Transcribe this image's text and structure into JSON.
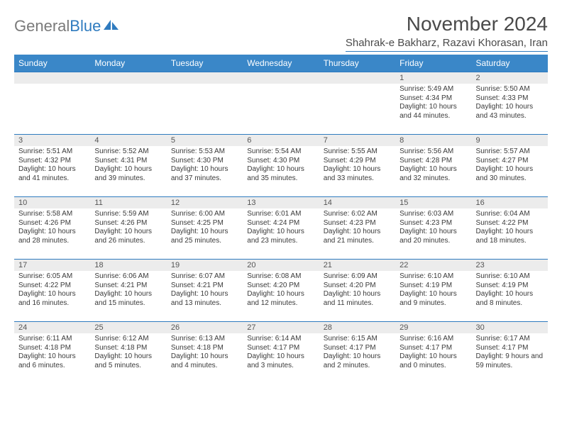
{
  "logo": {
    "text1": "General",
    "text2": "Blue"
  },
  "title": "November 2024",
  "location": "Shahrak-e Bakharz, Razavi Khorasan, Iran",
  "colors": {
    "header_bg": "#3a87c8",
    "accent": "#2f7bbf",
    "daynum_bg": "#ececec",
    "text": "#3a3a3a",
    "title_text": "#4a4a4a",
    "logo_gray": "#7a7a7a"
  },
  "day_headers": [
    "Sunday",
    "Monday",
    "Tuesday",
    "Wednesday",
    "Thursday",
    "Friday",
    "Saturday"
  ],
  "weeks": [
    [
      {
        "n": "",
        "sr": "",
        "ss": "",
        "dl": ""
      },
      {
        "n": "",
        "sr": "",
        "ss": "",
        "dl": ""
      },
      {
        "n": "",
        "sr": "",
        "ss": "",
        "dl": ""
      },
      {
        "n": "",
        "sr": "",
        "ss": "",
        "dl": ""
      },
      {
        "n": "",
        "sr": "",
        "ss": "",
        "dl": ""
      },
      {
        "n": "1",
        "sr": "Sunrise: 5:49 AM",
        "ss": "Sunset: 4:34 PM",
        "dl": "Daylight: 10 hours and 44 minutes."
      },
      {
        "n": "2",
        "sr": "Sunrise: 5:50 AM",
        "ss": "Sunset: 4:33 PM",
        "dl": "Daylight: 10 hours and 43 minutes."
      }
    ],
    [
      {
        "n": "3",
        "sr": "Sunrise: 5:51 AM",
        "ss": "Sunset: 4:32 PM",
        "dl": "Daylight: 10 hours and 41 minutes."
      },
      {
        "n": "4",
        "sr": "Sunrise: 5:52 AM",
        "ss": "Sunset: 4:31 PM",
        "dl": "Daylight: 10 hours and 39 minutes."
      },
      {
        "n": "5",
        "sr": "Sunrise: 5:53 AM",
        "ss": "Sunset: 4:30 PM",
        "dl": "Daylight: 10 hours and 37 minutes."
      },
      {
        "n": "6",
        "sr": "Sunrise: 5:54 AM",
        "ss": "Sunset: 4:30 PM",
        "dl": "Daylight: 10 hours and 35 minutes."
      },
      {
        "n": "7",
        "sr": "Sunrise: 5:55 AM",
        "ss": "Sunset: 4:29 PM",
        "dl": "Daylight: 10 hours and 33 minutes."
      },
      {
        "n": "8",
        "sr": "Sunrise: 5:56 AM",
        "ss": "Sunset: 4:28 PM",
        "dl": "Daylight: 10 hours and 32 minutes."
      },
      {
        "n": "9",
        "sr": "Sunrise: 5:57 AM",
        "ss": "Sunset: 4:27 PM",
        "dl": "Daylight: 10 hours and 30 minutes."
      }
    ],
    [
      {
        "n": "10",
        "sr": "Sunrise: 5:58 AM",
        "ss": "Sunset: 4:26 PM",
        "dl": "Daylight: 10 hours and 28 minutes."
      },
      {
        "n": "11",
        "sr": "Sunrise: 5:59 AM",
        "ss": "Sunset: 4:26 PM",
        "dl": "Daylight: 10 hours and 26 minutes."
      },
      {
        "n": "12",
        "sr": "Sunrise: 6:00 AM",
        "ss": "Sunset: 4:25 PM",
        "dl": "Daylight: 10 hours and 25 minutes."
      },
      {
        "n": "13",
        "sr": "Sunrise: 6:01 AM",
        "ss": "Sunset: 4:24 PM",
        "dl": "Daylight: 10 hours and 23 minutes."
      },
      {
        "n": "14",
        "sr": "Sunrise: 6:02 AM",
        "ss": "Sunset: 4:23 PM",
        "dl": "Daylight: 10 hours and 21 minutes."
      },
      {
        "n": "15",
        "sr": "Sunrise: 6:03 AM",
        "ss": "Sunset: 4:23 PM",
        "dl": "Daylight: 10 hours and 20 minutes."
      },
      {
        "n": "16",
        "sr": "Sunrise: 6:04 AM",
        "ss": "Sunset: 4:22 PM",
        "dl": "Daylight: 10 hours and 18 minutes."
      }
    ],
    [
      {
        "n": "17",
        "sr": "Sunrise: 6:05 AM",
        "ss": "Sunset: 4:22 PM",
        "dl": "Daylight: 10 hours and 16 minutes."
      },
      {
        "n": "18",
        "sr": "Sunrise: 6:06 AM",
        "ss": "Sunset: 4:21 PM",
        "dl": "Daylight: 10 hours and 15 minutes."
      },
      {
        "n": "19",
        "sr": "Sunrise: 6:07 AM",
        "ss": "Sunset: 4:21 PM",
        "dl": "Daylight: 10 hours and 13 minutes."
      },
      {
        "n": "20",
        "sr": "Sunrise: 6:08 AM",
        "ss": "Sunset: 4:20 PM",
        "dl": "Daylight: 10 hours and 12 minutes."
      },
      {
        "n": "21",
        "sr": "Sunrise: 6:09 AM",
        "ss": "Sunset: 4:20 PM",
        "dl": "Daylight: 10 hours and 11 minutes."
      },
      {
        "n": "22",
        "sr": "Sunrise: 6:10 AM",
        "ss": "Sunset: 4:19 PM",
        "dl": "Daylight: 10 hours and 9 minutes."
      },
      {
        "n": "23",
        "sr": "Sunrise: 6:10 AM",
        "ss": "Sunset: 4:19 PM",
        "dl": "Daylight: 10 hours and 8 minutes."
      }
    ],
    [
      {
        "n": "24",
        "sr": "Sunrise: 6:11 AM",
        "ss": "Sunset: 4:18 PM",
        "dl": "Daylight: 10 hours and 6 minutes."
      },
      {
        "n": "25",
        "sr": "Sunrise: 6:12 AM",
        "ss": "Sunset: 4:18 PM",
        "dl": "Daylight: 10 hours and 5 minutes."
      },
      {
        "n": "26",
        "sr": "Sunrise: 6:13 AM",
        "ss": "Sunset: 4:18 PM",
        "dl": "Daylight: 10 hours and 4 minutes."
      },
      {
        "n": "27",
        "sr": "Sunrise: 6:14 AM",
        "ss": "Sunset: 4:17 PM",
        "dl": "Daylight: 10 hours and 3 minutes."
      },
      {
        "n": "28",
        "sr": "Sunrise: 6:15 AM",
        "ss": "Sunset: 4:17 PM",
        "dl": "Daylight: 10 hours and 2 minutes."
      },
      {
        "n": "29",
        "sr": "Sunrise: 6:16 AM",
        "ss": "Sunset: 4:17 PM",
        "dl": "Daylight: 10 hours and 0 minutes."
      },
      {
        "n": "30",
        "sr": "Sunrise: 6:17 AM",
        "ss": "Sunset: 4:17 PM",
        "dl": "Daylight: 9 hours and 59 minutes."
      }
    ]
  ]
}
